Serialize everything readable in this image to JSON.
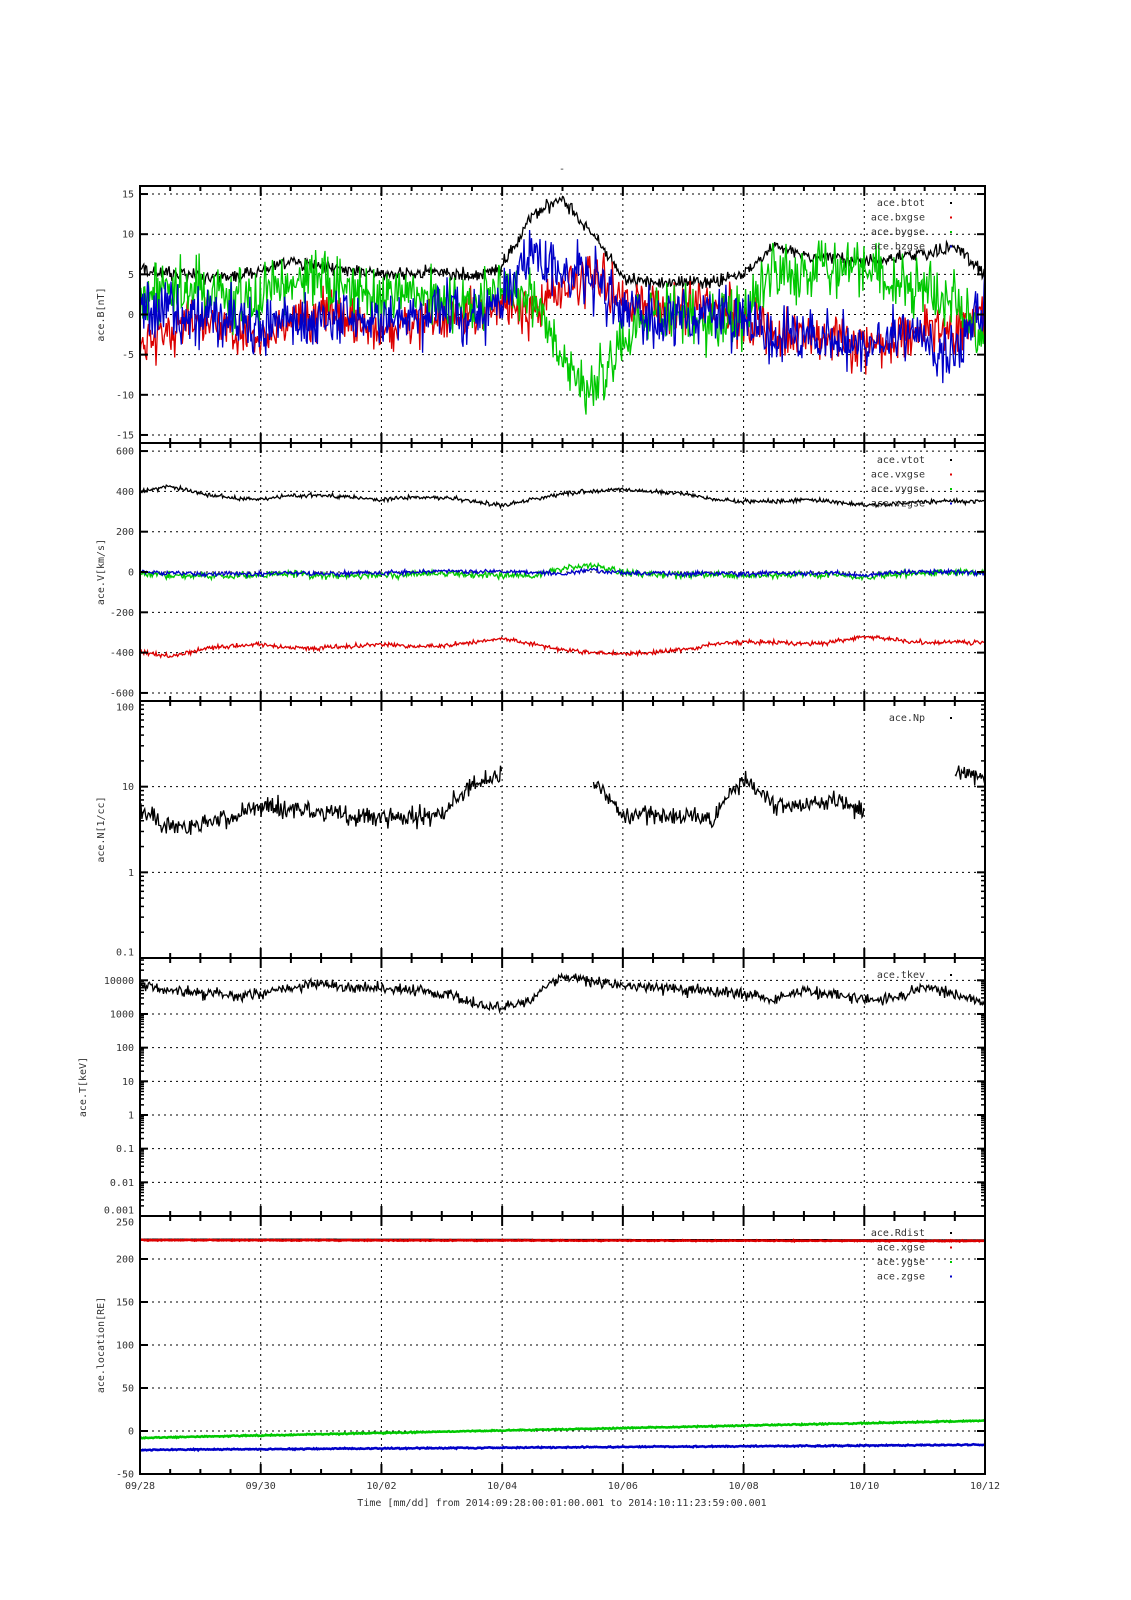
{
  "chart_data": {
    "type": "line",
    "title": "-",
    "xlabel": "Time [mm/dd]  from 2014:09:28:00:01:00.001  to  2014:10:11:23:59:00.001",
    "x_unit": "days since 09/28",
    "xlim": [
      0,
      14
    ],
    "x_ticks": [
      {
        "v": 0,
        "label": "09/28"
      },
      {
        "v": 2,
        "label": "09/30"
      },
      {
        "v": 4,
        "label": "10/02"
      },
      {
        "v": 6,
        "label": "10/04"
      },
      {
        "v": 8,
        "label": "10/06"
      },
      {
        "v": 10,
        "label": "10/08"
      },
      {
        "v": 12,
        "label": "10/10"
      },
      {
        "v": 14,
        "label": "10/12"
      }
    ],
    "x_grid_step": 0.5,
    "grid": true,
    "legend_placement": "top-right",
    "panels": [
      {
        "ylabel": "ace.B[nT]",
        "scale": "linear",
        "ylim": [
          -16,
          16
        ],
        "y_ticks": [
          {
            "v": 15,
            "label": "15"
          },
          {
            "v": 10,
            "label": "10"
          },
          {
            "v": 5,
            "label": "5"
          },
          {
            "v": 0,
            "label": "0"
          },
          {
            "v": -5,
            "label": "-5"
          },
          {
            "v": -10,
            "label": "-10"
          },
          {
            "v": -15,
            "label": "-15"
          }
        ],
        "series": [
          {
            "name": "ace.btot",
            "color": "#000000",
            "noise": 0.6,
            "values": [
              5.5,
              5,
              4.8,
              4.5,
              5.5,
              6.5,
              6,
              5.5,
              5,
              5,
              5.5,
              4.5,
              6,
              12.5,
              14.5,
              10,
              4.5,
              4,
              4,
              4,
              5,
              8.5,
              7.5,
              7,
              6.5,
              7,
              7.5,
              8.5,
              5
            ]
          },
          {
            "name": "ace.bxgse",
            "color": "#dc0000",
            "noise": 2.2,
            "values": [
              -4,
              -2,
              -1,
              -2,
              -3,
              -1,
              0,
              -1,
              -2,
              -1,
              0,
              0,
              1,
              0,
              3,
              5,
              2,
              1,
              1,
              1,
              -1,
              -2,
              -3,
              -3,
              -4,
              -3,
              -2,
              -2,
              0
            ]
          },
          {
            "name": "ace.bygse",
            "color": "#00c800",
            "noise": 2.6,
            "values": [
              2,
              3,
              3,
              2,
              2,
              4,
              4,
              3,
              2,
              3,
              2,
              2,
              2,
              3,
              -6,
              -10,
              -3,
              1,
              0,
              -1,
              0,
              5,
              5,
              6,
              6,
              4,
              3,
              1,
              -3
            ]
          },
          {
            "name": "ace.bzgse",
            "color": "#0000c8",
            "noise": 2.6,
            "values": [
              0,
              1,
              -1,
              0,
              -2,
              0,
              -1,
              0,
              -1,
              0,
              1,
              0,
              2,
              8,
              5,
              4,
              1,
              -1,
              0,
              0,
              -1,
              -3,
              -2,
              -3,
              -4,
              -2,
              -3,
              -5,
              2
            ]
          }
        ]
      },
      {
        "ylabel": "ace.V[km/s]",
        "scale": "linear",
        "ylim": [
          -640,
          640
        ],
        "y_ticks": [
          {
            "v": 600,
            "label": "600"
          },
          {
            "v": 400,
            "label": "400"
          },
          {
            "v": 200,
            "label": "200"
          },
          {
            "v": 0,
            "label": "0"
          },
          {
            "v": -200,
            "label": "-200"
          },
          {
            "v": -400,
            "label": "-400"
          },
          {
            "v": -600,
            "label": "-600"
          }
        ],
        "series": [
          {
            "name": "ace.vtot",
            "color": "#000000",
            "noise": 8,
            "values": [
              400,
              425,
              390,
              370,
              360,
              380,
              380,
              370,
              360,
              370,
              370,
              350,
              330,
              360,
              390,
              400,
              410,
              400,
              390,
              360,
              350,
              350,
              360,
              350,
              330,
              340,
              350,
              350,
              350
            ]
          },
          {
            "name": "ace.vxgse",
            "color": "#dc0000",
            "noise": 8,
            "values": [
              -395,
              -420,
              -385,
              -368,
              -358,
              -378,
              -378,
              -368,
              -358,
              -368,
              -368,
              -348,
              -328,
              -358,
              -388,
              -398,
              -408,
              -398,
              -388,
              -358,
              -348,
              -348,
              -358,
              -348,
              -320,
              -338,
              -348,
              -348,
              -348
            ]
          },
          {
            "name": "ace.vygse",
            "color": "#00c800",
            "noise": 12,
            "values": [
              -10,
              -15,
              -20,
              -20,
              -15,
              -10,
              -15,
              -20,
              -15,
              -10,
              -5,
              -15,
              -15,
              -20,
              20,
              30,
              0,
              -10,
              -15,
              -10,
              -20,
              -15,
              -10,
              -15,
              -25,
              -10,
              -5,
              0,
              -5
            ]
          },
          {
            "name": "ace.vzgse",
            "color": "#0000c8",
            "noise": 8,
            "values": [
              0,
              -5,
              -10,
              -10,
              -10,
              -5,
              -10,
              -5,
              -5,
              0,
              5,
              0,
              5,
              0,
              -10,
              10,
              -5,
              -5,
              -10,
              -5,
              -10,
              -5,
              -10,
              -5,
              -20,
              0,
              0,
              0,
              -5
            ]
          }
        ]
      },
      {
        "ylabel": "ace.N[1/cc]",
        "scale": "log",
        "ylim": [
          0.1,
          100
        ],
        "y_ticks": [
          {
            "v": 100,
            "label": "100"
          },
          {
            "v": 10,
            "label": "10"
          },
          {
            "v": 1,
            "label": "1"
          },
          {
            "v": 0.1,
            "label": "0.1"
          }
        ],
        "series": [
          {
            "name": "ace.Np",
            "color": "#000000",
            "noise": 0.08,
            "values": [
              5,
              3.5,
              3.5,
              4.5,
              6,
              5.5,
              5,
              4.5,
              4.5,
              4.5,
              4.5,
              10,
              14,
              null,
              null,
              10,
              4.5,
              4.5,
              4.5,
              4,
              12,
              6,
              6,
              7,
              5,
              null,
              null,
              15,
              13
            ]
          }
        ]
      },
      {
        "ylabel": "ace.T[keV]",
        "scale": "log",
        "ylim": [
          0.001,
          46000
        ],
        "y_ticks": [
          {
            "v": 10000,
            "label": "10000"
          },
          {
            "v": 1000,
            "label": "1000"
          },
          {
            "v": 100,
            "label": "100"
          },
          {
            "v": 10,
            "label": "10"
          },
          {
            "v": 1,
            "label": "1"
          },
          {
            "v": 0.1,
            "label": "0.1"
          },
          {
            "v": 0.01,
            "label": "0.01"
          },
          {
            "v": 0.001,
            "label": "0.001"
          }
        ],
        "series": [
          {
            "name": "ace.tkev",
            "color": "#000000",
            "noise": 0.12,
            "values": [
              7000,
              5000,
              4000,
              3500,
              4000,
              6000,
              8000,
              6000,
              6000,
              5000,
              4000,
              2000,
              1500,
              2500,
              12000,
              10000,
              7000,
              6000,
              5000,
              5000,
              4000,
              2500,
              5000,
              4000,
              2500,
              3000,
              6000,
              4000,
              2000
            ]
          }
        ]
      },
      {
        "ylabel": "ace.location[RE]",
        "scale": "linear",
        "ylim": [
          -50,
          250
        ],
        "y_ticks": [
          {
            "v": 250,
            "label": "250"
          },
          {
            "v": 200,
            "label": "200"
          },
          {
            "v": 150,
            "label": "150"
          },
          {
            "v": 100,
            "label": "100"
          },
          {
            "v": 50,
            "label": "50"
          },
          {
            "v": 0,
            "label": "0"
          },
          {
            "v": -50,
            "label": "-50"
          }
        ],
        "series": [
          {
            "name": "ace.Rdist",
            "color": "#000000",
            "noise": 0,
            "values": [
              222.5,
              221.5
            ]
          },
          {
            "name": "ace.xgse",
            "color": "#dc0000",
            "noise": 0.4,
            "values": [
              222,
              221
            ]
          },
          {
            "name": "ace.ygse",
            "color": "#00c800",
            "noise": 0.5,
            "values": [
              -8,
              12
            ]
          },
          {
            "name": "ace.zgse",
            "color": "#0000c8",
            "noise": 0.5,
            "values": [
              -22,
              -16
            ]
          }
        ]
      }
    ]
  }
}
